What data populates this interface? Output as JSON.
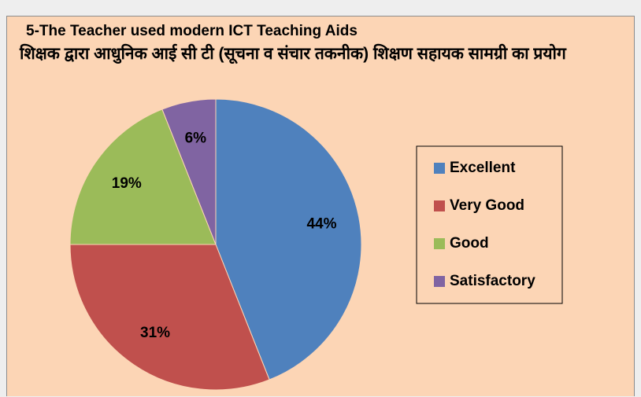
{
  "chart_data": {
    "type": "pie",
    "title": "5-The Teacher used modern ICT Teaching Aids",
    "subtitle": "शिक्षक द्वारा आधुनिक आई सी टी (सूचना व संचार तकनीक) शिक्षण सहायक सामग्री का प्रयोग",
    "categories": [
      "Excellent",
      "Very Good",
      "Good",
      "Satisfactory"
    ],
    "values": [
      44,
      31,
      19,
      6
    ],
    "value_labels": [
      "44%",
      "31%",
      "19%",
      "6%"
    ],
    "colors": [
      "#4f81bd",
      "#c0504d",
      "#9bbb59",
      "#8064a2"
    ],
    "legend": "right"
  }
}
